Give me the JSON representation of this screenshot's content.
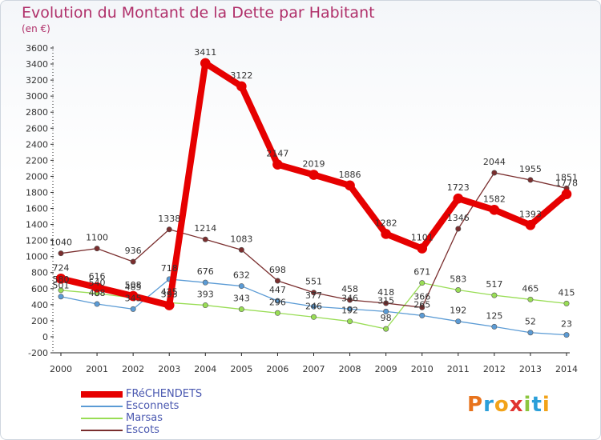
{
  "header": {
    "title": "Evolution du Montant de la Dette par Habitant",
    "subtitle": "(en €)"
  },
  "logo": {
    "text": "Proxiti",
    "letters": [
      "P",
      "r",
      "o",
      "x",
      "i",
      "t",
      "i"
    ],
    "colors": [
      "#e8731c",
      "#2b9fd9",
      "#f2a319",
      "#e0332f",
      "#8cc63f",
      "#2b9fd9",
      "#f2a319"
    ]
  },
  "chart_data": {
    "type": "line",
    "title": "Evolution du Montant de la Dette par Habitant",
    "subtitle": "(en €)",
    "xlabel": "",
    "ylabel": "",
    "x": [
      "2000",
      "2001",
      "2002",
      "2003",
      "2004",
      "2005",
      "2006",
      "2007",
      "2008",
      "2009",
      "2010",
      "2011",
      "2012",
      "2013",
      "2014"
    ],
    "ylim": [
      -200,
      3600
    ],
    "yticks": [
      -200,
      0,
      200,
      400,
      600,
      800,
      1000,
      1200,
      1400,
      1600,
      1800,
      2000,
      2200,
      2400,
      2600,
      2800,
      3000,
      3200,
      3400,
      3600
    ],
    "grid": false,
    "legend_position": "bottom-left",
    "series": [
      {
        "name": "FRéCHENDETS",
        "color": "#e60000",
        "width": 8,
        "values": [
          724,
          616,
          508,
          393,
          3411,
          3122,
          2147,
          2019,
          1886,
          1282,
          1101,
          1723,
          1582,
          1393,
          1778
        ]
      },
      {
        "name": "Esconnets",
        "color": "#5b9bd5",
        "width": 1.3,
        "values": [
          501,
          408,
          345,
          718,
          676,
          632,
          447,
          377,
          346,
          315,
          265,
          192,
          125,
          52,
          23
        ]
      },
      {
        "name": "Marsas",
        "color": "#99dd55",
        "width": 1.3,
        "values": [
          580,
          540,
          485,
          425,
          393,
          343,
          296,
          246,
          192,
          98,
          671,
          583,
          517,
          465,
          415
        ]
      },
      {
        "name": "Escots",
        "color": "#7a2e2e",
        "width": 1.3,
        "values": [
          1040,
          1100,
          936,
          1338,
          1214,
          1083,
          698,
          551,
          458,
          418,
          366,
          1346,
          2044,
          1955,
          1851
        ]
      }
    ]
  }
}
